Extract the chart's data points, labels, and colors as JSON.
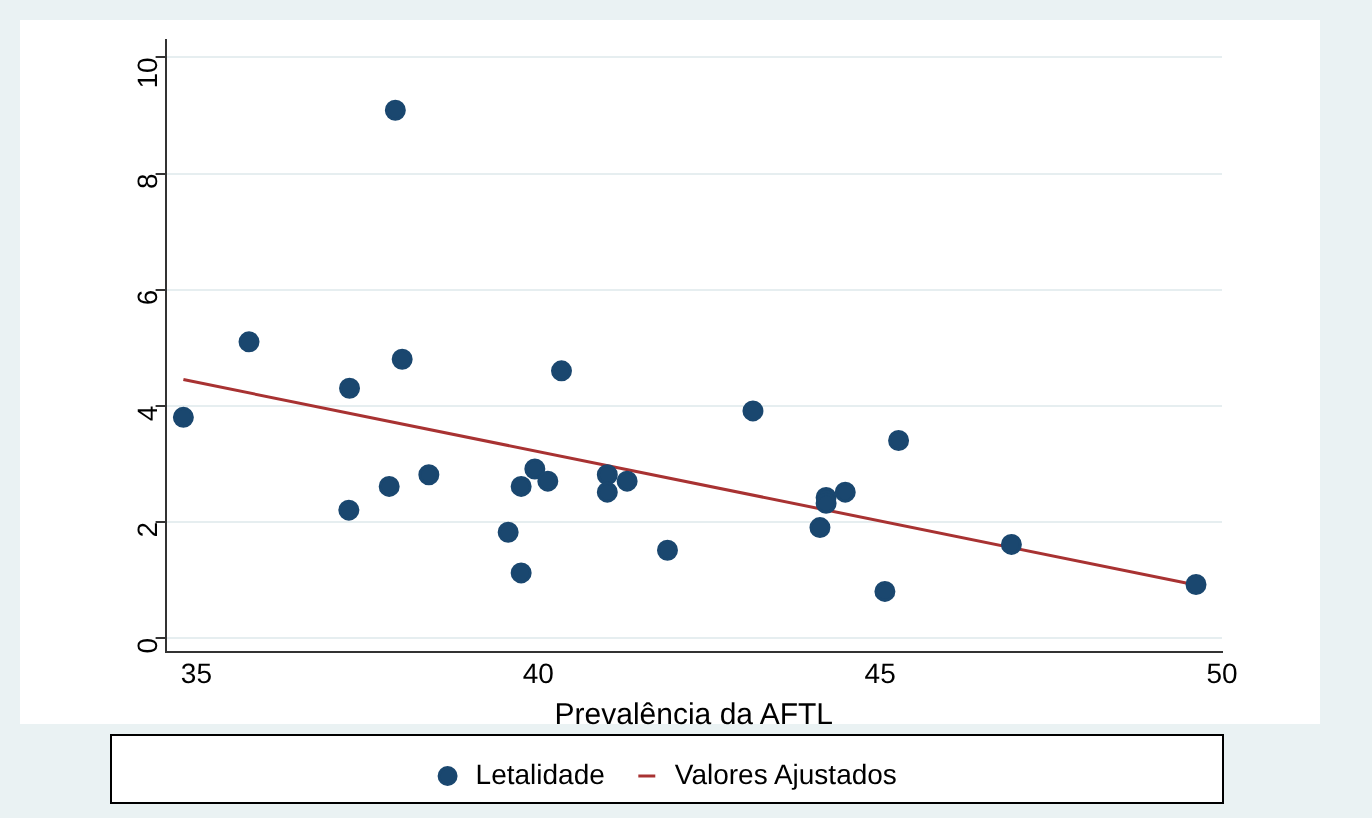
{
  "chart_data": {
    "type": "scatter",
    "xlabel": "Prevalência da AFTL",
    "xlim": [
      34.55,
      50
    ],
    "xticks": [
      35,
      40,
      45,
      50
    ],
    "ylim": [
      -0.25,
      10.3
    ],
    "yticks": [
      0,
      2,
      4,
      6,
      8,
      10
    ],
    "grid": "y",
    "legend": "bottom",
    "marker": "circle",
    "series": [
      {
        "name": "Letalidade",
        "color": "#1a476f",
        "x": [
          34.81,
          35.77,
          37.91,
          38.01,
          37.24,
          37.23,
          37.82,
          38.4,
          39.56,
          39.75,
          39.75,
          39.95,
          40.14,
          40.34,
          41.01,
          41.01,
          41.3,
          41.89,
          43.14,
          45.27,
          44.21,
          44.21,
          44.49,
          44.12,
          45.07,
          46.92,
          49.62
        ],
        "values": [
          3.8,
          5.1,
          9.09,
          4.8,
          4.3,
          2.2,
          2.61,
          2.81,
          1.82,
          2.61,
          1.12,
          2.91,
          2.7,
          4.6,
          2.81,
          2.51,
          2.7,
          1.51,
          3.91,
          3.4,
          2.42,
          2.32,
          2.51,
          1.9,
          0.8,
          1.61,
          0.92
        ]
      },
      {
        "name": "Valores Ajustados",
        "type": "line",
        "color": "#a83232",
        "marker": "none",
        "line_style": "solid",
        "x": [
          34.81,
          49.62
        ],
        "values": [
          4.45,
          0.91
        ]
      }
    ]
  }
}
